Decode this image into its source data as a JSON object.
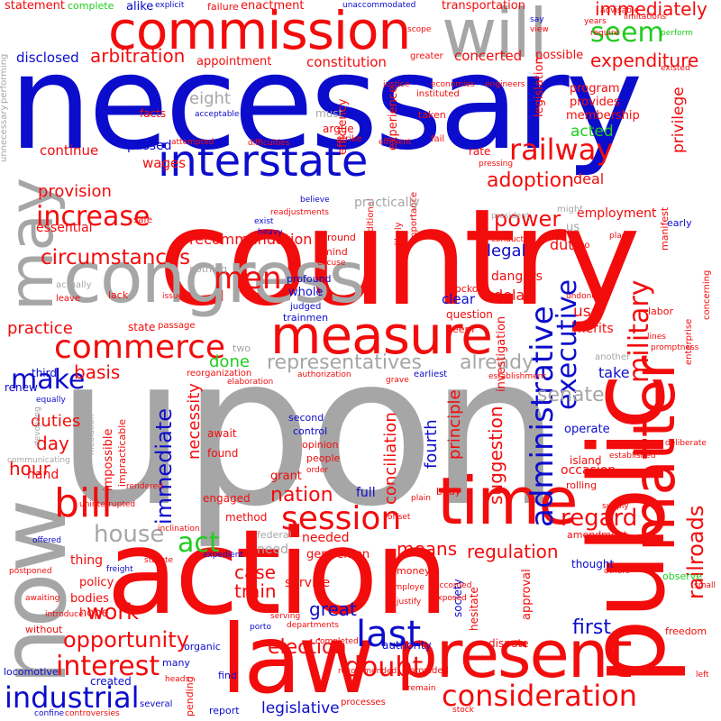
{
  "words": {
    "upon": "upon",
    "necessary": "necessary",
    "country": "country",
    "action": "action",
    "public": "public",
    "law": "law",
    "now": "now",
    "congress": "congress",
    "will": "will",
    "commission": "commission",
    "present": "present",
    "time": "time",
    "measure": "measure",
    "may": "may",
    "matter": "matter",
    "interstate": "interstate",
    "administrative": "administrative",
    "commerce": "commerce",
    "consideration": "consideration",
    "industrial": "industrial",
    "increase": "increase",
    "interest": "interest",
    "railway": "railway",
    "executive": "executive",
    "military": "military",
    "railroads": "railroads",
    "bill": "bill",
    "session": "session",
    "doubt": "doubt",
    "last": "last",
    "circumstances": "circumstances",
    "immediate": "immediate",
    "make": "make",
    "seem": "seem",
    "house": "house",
    "act": "act",
    "regard": "regard",
    "opportunity": "opportunity",
    "men": "men",
    "power": "power",
    "adoption": "adoption",
    "arbitration": "arbitration",
    "expenditure": "expenditure",
    "representatives": "representatives",
    "already": "already",
    "immediately": "immediately",
    "nation": "nation",
    "election": "election",
    "senate": "senate",
    "duties": "duties",
    "work": "work",
    "hour": "hour",
    "first": "first",
    "case": "case",
    "train": "train",
    "great": "great",
    "means": "means",
    "regulation": "regulation",
    "legislative": "legislative",
    "conciliation": "conciliation",
    "principle": "principle",
    "suggestion": "suggestion",
    "necessity": "necessity",
    "fourth": "fourth",
    "provision": "provision",
    "recommendation": "recommendation",
    "practice": "practice",
    "basis": "basis",
    "day": "day",
    "legal": "legal",
    "done": "done",
    "concerted": "concerted",
    "eight": "eight",
    "statement": "statement",
    "transportation": "transportation",
    "enactment": "enactment",
    "failure": "failure",
    "alike": "alike",
    "explicit": "explicit",
    "complete": "complete",
    "constitution": "constitution",
    "appointment": "appointment",
    "disclosed": "disclosed",
    "essential": "essential",
    "continue": "continue",
    "thorough": "thorough",
    "passed": "passed",
    "wages": "wages",
    "efficiency": "efficiency",
    "experience": "experience",
    "legislation": "legislation",
    "program": "program",
    "provides": "provides",
    "membership": "membership",
    "acted": "acted",
    "deal": "deal",
    "employment": "employment",
    "duty": "duty",
    "privilege": "privilege",
    "delay": "delay",
    "dangers": "dangers",
    "use": "use",
    "merits": "merits",
    "take": "take",
    "occasion": "occasion",
    "operate": "operate",
    "island": "island",
    "investigation": "investigation",
    "clear": "clear",
    "question": "question",
    "whole": "whole",
    "trainmen": "trainmen",
    "profound": "profound",
    "judged": "judged",
    "lockout": "lockout",
    "deem": "deem",
    "safeguarding": "safeguarding",
    "grant": "grant",
    "engaged": "engaged",
    "method": "method",
    "found": "found",
    "await": "await",
    "impossible": "impossible",
    "impracticable": "impracticable",
    "renew": "renew",
    "third": "third",
    "equally": "equally",
    "hand": "hand",
    "full": "full",
    "second": "second",
    "control": "control",
    "opinion": "opinion",
    "people": "people",
    "order": "order",
    "needed": "needed",
    "gentlemen": "gentlemen",
    "need": "need",
    "federal": "federal",
    "thing": "thing",
    "policy": "policy",
    "bodies": "bodies",
    "hope": "hope",
    "created": "created",
    "many": "many",
    "organic": "organic",
    "pending": "pending",
    "find": "find",
    "report": "report",
    "authority": "authority",
    "money": "money",
    "service": "service",
    "society": "society",
    "dispute": "dispute",
    "approval": "approval",
    "thought": "thought",
    "amendment": "amendment",
    "observe": "observe",
    "others": "others",
    "freedom": "freedom",
    "mind": "mind",
    "ground": "ground",
    "importance": "importance",
    "unlikely": "unlikely",
    "additional": "additional",
    "conductors": "conductors",
    "practically": "practically",
    "us": "us",
    "might": "might",
    "labor": "labor",
    "manifest": "manifest",
    "early": "early",
    "facts": "facts",
    "must": "must",
    "argue": "argue",
    "taken": "taken",
    "rate": "rate",
    "instituted": "instituted",
    "possible": "possible",
    "greater": "greater",
    "justice": "justice",
    "economies": "economies",
    "engineers": "engineers",
    "say": "say",
    "view": "view",
    "scope": "scope",
    "require": "require",
    "years": "years",
    "perform": "perform",
    "existed": "existed",
    "seems": "seems",
    "crews": "crews",
    "strike": "strike",
    "efficient": "efficient",
    "fail": "fail",
    "pressing": "pressing",
    "attempted": "attempted",
    "difficulties": "difficulties",
    "continued": "continued",
    "performing": "performing",
    "unnecessary": "unnecessary",
    "lack": "lack",
    "leave": "leave",
    "actually": "actually",
    "concerning": "concerning",
    "enterprise": "enterprise",
    "lines": "lines",
    "establishment": "establishment",
    "rolling": "rolling",
    "established": "established",
    "supply": "supply",
    "deliberate": "deliberate",
    "promptness": "promptness",
    "porto": "porto",
    "rico": "rico",
    "place": "place",
    "undone": "undone",
    "body": "body",
    "still": "still",
    "plain": "plain",
    "serving": "serving",
    "departments": "departments",
    "offset": "offset",
    "employe": "employe",
    "justify": "justify",
    "hesitate": "hesitate",
    "accorded": "accorded",
    "exposed": "exposed",
    "stock": "stock",
    "processes": "processes",
    "provided": "provided",
    "recommended": "recommended",
    "remain": "remain",
    "completed": "completed",
    "controversies": "controversies",
    "confine": "confine",
    "several": "several",
    "locomotive": "locomotive",
    "without": "without",
    "awaiting": "awaiting",
    "offered": "offered",
    "freight": "freight",
    "heads": "heads",
    "statute": "statute",
    "inclination": "inclination",
    "expedient": "expedient",
    "postponed": "postponed",
    "introduce": "introduce",
    "small": "small",
    "left": "left",
    "reorganization": "reorganization",
    "two": "two",
    "another": "another",
    "earliest": "earliest",
    "authorization": "authorization",
    "elaboration": "elaboration",
    "grave": "grave",
    "authorized": "authorized",
    "state": "state",
    "passage": "passage",
    "issue": "issue",
    "president": "president",
    "nothing": "nothing",
    "safe": "safe",
    "heavy": "heavy",
    "exist": "exist",
    "readjustments": "readjustments",
    "believe": "believe",
    "partisan": "partisan",
    "excuse": "excuse",
    "function": "function",
    "acceptable": "acceptable",
    "immediate2": "immediately",
    "unaccommodated": "unaccommodated",
    "mediation": "mediation",
    "devolving": "devolving",
    "communicating": "communicating",
    "rendered": "rendered",
    "uninterrupted": "uninterrupted",
    "limitations": "limitations",
    "advisable": "advisable",
    "small2": "small"
  }
}
